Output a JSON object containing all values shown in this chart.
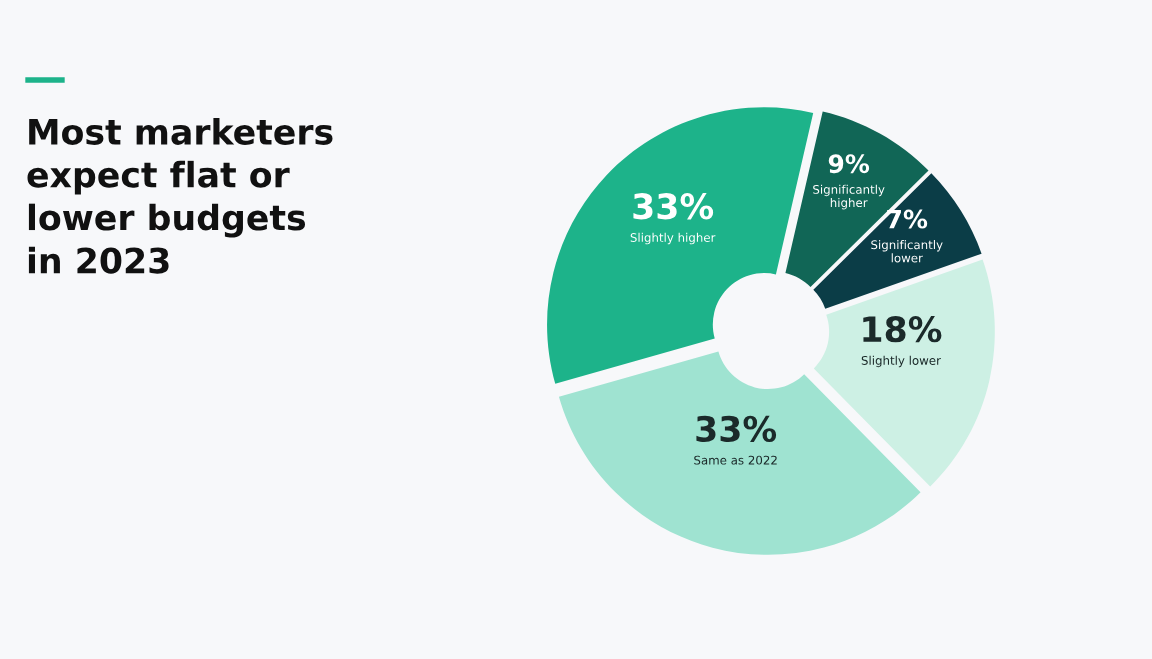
{
  "chart_data": {
    "type": "donut",
    "title": "Most marketers\nexpect flat or\nlower budgets\nin 2023",
    "categories": [
      "Significantly\nhigher",
      "Significantly\nlower",
      "Slightly lower",
      "Same as 2022",
      "Slightly higher"
    ],
    "values": [
      9,
      7,
      18,
      33,
      33
    ],
    "value_labels": [
      "9%",
      "7%",
      "18%",
      "33%",
      "33%"
    ],
    "colors": [
      "#116656",
      "#0b3d47",
      "#cdf0e4",
      "#9fe3d1",
      "#1db38a"
    ],
    "legend": false
  }
}
